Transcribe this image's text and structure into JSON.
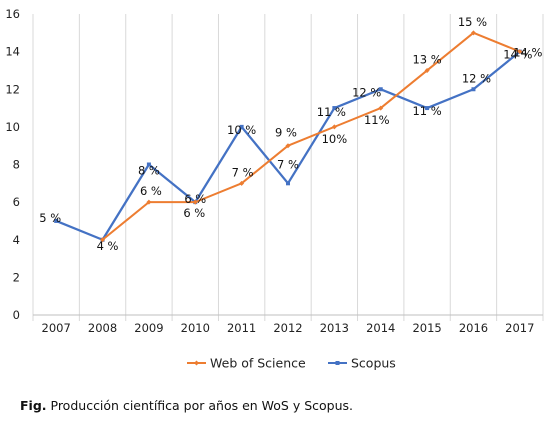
{
  "chart_data": {
    "type": "line",
    "categories": [
      "2007",
      "2008",
      "2009",
      "2010",
      "2011",
      "2012",
      "2013",
      "2014",
      "2015",
      "2016",
      "2017"
    ],
    "ylim": [
      0,
      16
    ],
    "yticks": [
      0,
      2,
      4,
      6,
      8,
      10,
      12,
      14,
      16
    ],
    "grid": "vertical",
    "legend": "bottom",
    "series": [
      {
        "name": "Web of Science",
        "color": "#ED7D31",
        "values": [
          null,
          4,
          6,
          6,
          7,
          9,
          10,
          11,
          13,
          15,
          14
        ],
        "labels": [
          null,
          null,
          "6 %",
          "6 %",
          "7 %",
          "9 %",
          "10%",
          "11%",
          "13 %",
          "15 %",
          "14 %"
        ]
      },
      {
        "name": "Scopus",
        "color": "#4472C4",
        "values": [
          5,
          4,
          8,
          6,
          10,
          7,
          11,
          12,
          11,
          12,
          14
        ],
        "labels": [
          "5 %",
          "4 %",
          "8 %",
          "6 %",
          "10 %",
          "7 %",
          "11 %",
          "12 %",
          "11 %",
          "12 %",
          "14 %"
        ]
      }
    ]
  },
  "caption": {
    "prefix": "Fig.",
    "text": " Producción científica por años en WoS y Scopus."
  }
}
